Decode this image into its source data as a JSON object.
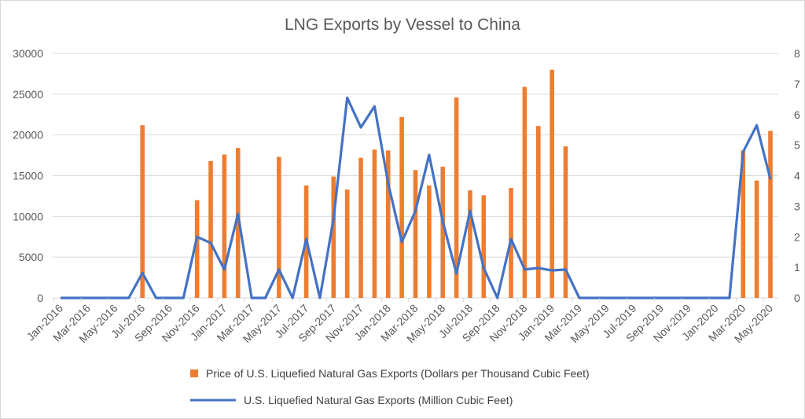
{
  "chart_data": {
    "type": "bar+line",
    "title": "LNG Exports by Vessel to China",
    "x": [
      "Jan-2016",
      "Feb-2016",
      "Mar-2016",
      "Apr-2016",
      "May-2016",
      "Jun-2016",
      "Jul-2016",
      "Aug-2016",
      "Sep-2016",
      "Oct-2016",
      "Nov-2016",
      "Dec-2016",
      "Jan-2017",
      "Feb-2017",
      "Mar-2017",
      "Apr-2017",
      "May-2017",
      "Jun-2017",
      "Jul-2017",
      "Aug-2017",
      "Sep-2017",
      "Oct-2017",
      "Nov-2017",
      "Dec-2017",
      "Jan-2018",
      "Feb-2018",
      "Mar-2018",
      "Apr-2018",
      "May-2018",
      "Jun-2018",
      "Jul-2018",
      "Aug-2018",
      "Sep-2018",
      "Oct-2018",
      "Nov-2018",
      "Dec-2018",
      "Jan-2019",
      "Feb-2019",
      "Mar-2019",
      "Apr-2019",
      "May-2019",
      "Jun-2019",
      "Jul-2019",
      "Aug-2019",
      "Sep-2019",
      "Oct-2019",
      "Nov-2019",
      "Dec-2019",
      "Jan-2020",
      "Feb-2020",
      "Mar-2020",
      "Apr-2020",
      "May-2020"
    ],
    "x_tick_labels": [
      "Jan-2016",
      "Mar-2016",
      "May-2016",
      "Jul-2016",
      "Sep-2016",
      "Nov-2016",
      "Jan-2017",
      "Mar-2017",
      "May-2017",
      "Jul-2017",
      "Sep-2017",
      "Nov-2017",
      "Jan-2018",
      "Mar-2018",
      "May-2018",
      "Jul-2018",
      "Sep-2018",
      "Nov-2018",
      "Jan-2019",
      "Mar-2019",
      "May-2019",
      "Jul-2019",
      "Sep-2019",
      "Nov-2019",
      "Jan-2020",
      "Mar-2020",
      "May-2020"
    ],
    "y_left": {
      "range": [
        0,
        30000
      ],
      "ticks": [
        "0",
        "5000",
        "10000",
        "15000",
        "20000",
        "25000",
        "30000"
      ]
    },
    "y_right": {
      "range": [
        0,
        8
      ],
      "ticks": [
        "0",
        "1",
        "2",
        "3",
        "4",
        "5",
        "6",
        "7",
        "8"
      ]
    },
    "grid": true,
    "legend_position": "bottom",
    "series": [
      {
        "name": "Price of U.S. Liquefied Natural Gas Exports (Dollars per Thousand Cubic Feet)",
        "type": "bar",
        "axis": "left",
        "color": "#ED7D31",
        "values": [
          null,
          null,
          null,
          null,
          null,
          null,
          21200,
          null,
          null,
          null,
          12000,
          16800,
          17600,
          18400,
          null,
          null,
          17300,
          null,
          13800,
          null,
          14900,
          13300,
          17200,
          18200,
          18100,
          22200,
          15700,
          13800,
          16100,
          24600,
          13200,
          12600,
          null,
          13500,
          25900,
          21100,
          28000,
          18600,
          null,
          null,
          null,
          null,
          null,
          null,
          null,
          null,
          null,
          null,
          null,
          null,
          18100,
          14400,
          20500
        ]
      },
      {
        "name": "U.S. Liquefied Natural Gas Exports (Million Cubic Feet)",
        "type": "line",
        "axis": "right",
        "color": "#4472C4",
        "values": [
          0,
          0,
          0,
          0,
          0,
          0,
          0.82,
          0,
          0,
          0,
          2.0,
          1.8,
          0.93,
          2.75,
          0,
          0,
          0.93,
          0,
          1.93,
          0,
          2.6,
          6.55,
          5.58,
          6.27,
          3.75,
          1.83,
          2.85,
          4.68,
          2.5,
          0.8,
          2.85,
          0.98,
          0,
          1.93,
          0.93,
          0.98,
          0.9,
          0.93,
          0,
          0,
          0,
          0,
          0,
          0,
          0,
          0,
          0,
          0,
          0,
          0,
          4.78,
          5.65,
          3.88
        ]
      }
    ]
  }
}
